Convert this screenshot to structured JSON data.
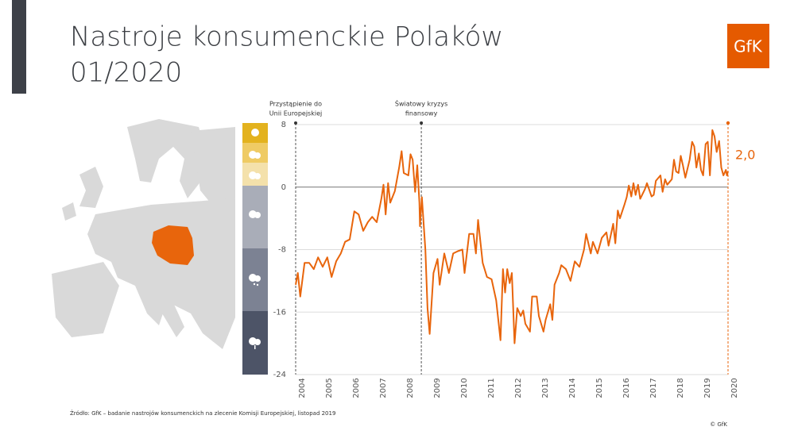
{
  "chart_data": {
    "type": "line",
    "title": "Nastroje konsumenckie Polaków",
    "subtitle": "01/2020",
    "xlim": [
      2004,
      2020
    ],
    "xticks": [
      2004,
      2005,
      2006,
      2007,
      2008,
      2009,
      2010,
      2011,
      2012,
      2013,
      2014,
      2015,
      2016,
      2017,
      2018,
      2019,
      2020
    ],
    "ylim": [
      -24,
      8
    ],
    "yticks": [
      8,
      0,
      -8,
      -16,
      -24
    ],
    "grid": true,
    "annotations": [
      {
        "x": 2004,
        "lines": [
          "Przystąpienie do",
          "Unii Europejskiej"
        ]
      },
      {
        "x": 2008.65,
        "lines": [
          "Światowy kryzys",
          "finansowy"
        ]
      }
    ],
    "series": [
      {
        "color": "#e8650c",
        "x": [
          2004.0,
          2004.08,
          2004.17,
          2004.33,
          2004.5,
          2004.67,
          2004.83,
          2005.0,
          2005.17,
          2005.33,
          2005.5,
          2005.67,
          2005.83,
          2006.0,
          2006.17,
          2006.33,
          2006.5,
          2006.67,
          2006.83,
          2007.0,
          2007.17,
          2007.25,
          2007.33,
          2007.42,
          2007.5,
          2007.67,
          2007.83,
          2007.92,
          2008.0,
          2008.17,
          2008.25,
          2008.33,
          2008.42,
          2008.5,
          2008.58,
          2008.6,
          2008.67,
          2008.8,
          2008.88,
          2008.96,
          2009.1,
          2009.25,
          2009.33,
          2009.5,
          2009.67,
          2009.83,
          2010.0,
          2010.17,
          2010.25,
          2010.42,
          2010.58,
          2010.67,
          2010.75,
          2010.92,
          2011.08,
          2011.25,
          2011.42,
          2011.58,
          2011.67,
          2011.75,
          2011.83,
          2011.92,
          2012.0,
          2012.1,
          2012.2,
          2012.33,
          2012.42,
          2012.5,
          2012.67,
          2012.75,
          2012.92,
          2013.0,
          2013.17,
          2013.25,
          2013.42,
          2013.5,
          2013.58,
          2013.75,
          2013.83,
          2014.0,
          2014.17,
          2014.33,
          2014.5,
          2014.67,
          2014.75,
          2014.92,
          2015.0,
          2015.17,
          2015.33,
          2015.5,
          2015.58,
          2015.75,
          2015.83,
          2015.92,
          2016.0,
          2016.17,
          2016.25,
          2016.33,
          2016.42,
          2016.5,
          2016.58,
          2016.67,
          2016.75,
          2016.92,
          2017.0,
          2017.17,
          2017.25,
          2017.33,
          2017.5,
          2017.58,
          2017.67,
          2017.75,
          2017.92,
          2018.0,
          2018.08,
          2018.17,
          2018.25,
          2018.33,
          2018.42,
          2018.58,
          2018.67,
          2018.75,
          2018.83,
          2018.92,
          2019.0,
          2019.08,
          2019.17,
          2019.25,
          2019.33,
          2019.42,
          2019.5,
          2019.58,
          2019.67,
          2019.75,
          2019.83,
          2019.92,
          2019.96,
          2020.0
        ],
        "values": [
          -12.5,
          -11,
          -14,
          -9.7,
          -9.7,
          -10.5,
          -9,
          -10.2,
          -9,
          -11.5,
          -9.5,
          -8.5,
          -7,
          -6.7,
          -3.1,
          -3.5,
          -5.6,
          -4.5,
          -3.8,
          -4.5,
          -1.5,
          0.3,
          -3.5,
          0.5,
          -2,
          -0.5,
          2.5,
          4.6,
          1.8,
          1.5,
          4.2,
          3.5,
          -0.6,
          2.8,
          -2,
          -5,
          -1.3,
          -8,
          -15.5,
          -18.8,
          -11,
          -9.2,
          -12.5,
          -8.5,
          -11,
          -8.5,
          -8.2,
          -8,
          -11,
          -6,
          -6,
          -8.5,
          -4.2,
          -9.7,
          -11.5,
          -11.8,
          -14.5,
          -19.6,
          -10.5,
          -13.5,
          -10.5,
          -12.3,
          -11,
          -20,
          -15.5,
          -16.5,
          -15.8,
          -17.5,
          -18.5,
          -14,
          -14,
          -16.5,
          -18.5,
          -17,
          -15,
          -17,
          -12.5,
          -11,
          -10,
          -10.5,
          -12,
          -9.5,
          -10.2,
          -8,
          -6,
          -8.5,
          -7,
          -8.5,
          -6.5,
          -5.8,
          -7.5,
          -4.7,
          -7.2,
          -3,
          -4,
          -2.2,
          -1.3,
          0.2,
          -1.2,
          0.5,
          -1,
          0.3,
          -1.5,
          -0.3,
          0.5,
          -1.2,
          -1,
          0.8,
          1.5,
          -0.6,
          1,
          0.3,
          1,
          3.5,
          2,
          1.8,
          4,
          2.8,
          1.2,
          3.5,
          5.8,
          5.2,
          2.5,
          4.3,
          2.2,
          1.5,
          5.5,
          5.8,
          1.5,
          7.3,
          6.5,
          4.5,
          5.9,
          2.5,
          1.5,
          2.2,
          1.5,
          2
        ],
        "value_labels": [
          null,
          null,
          null,
          null,
          null,
          null,
          null,
          null,
          null,
          null,
          null,
          null,
          null,
          null,
          null,
          null,
          null,
          null,
          null,
          null,
          null,
          null,
          null,
          null,
          null,
          null,
          null,
          null,
          null,
          null,
          null,
          null,
          null,
          null,
          null,
          null,
          null,
          null,
          null,
          null,
          null,
          null,
          null,
          null,
          null,
          null,
          null,
          null,
          null,
          null,
          null,
          null,
          null,
          null,
          null,
          null,
          null,
          null,
          null,
          null,
          null,
          null,
          null,
          null,
          null,
          null,
          null,
          null,
          null,
          null,
          null,
          null,
          null,
          null,
          null,
          null,
          null,
          null,
          null,
          null,
          null,
          null,
          null,
          null,
          null,
          null,
          null,
          null,
          null,
          null,
          null,
          null,
          null,
          null,
          null,
          null,
          null,
          null,
          null,
          null,
          null,
          null,
          null,
          null,
          null,
          null,
          null,
          null,
          null,
          null,
          null,
          null,
          null,
          null,
          null,
          null,
          null,
          null,
          null,
          null,
          null,
          null,
          null,
          null,
          null,
          null,
          null,
          null,
          null,
          null,
          null,
          null,
          null,
          null,
          null,
          null,
          null,
          "2,0"
        ]
      }
    ]
  },
  "logo": "GfK",
  "source": "Źródło: GfK – badanie nastrojów konsumenckich na zlecenie Komisji Europejskiej, listopad 2019",
  "copyright": "© GfK"
}
